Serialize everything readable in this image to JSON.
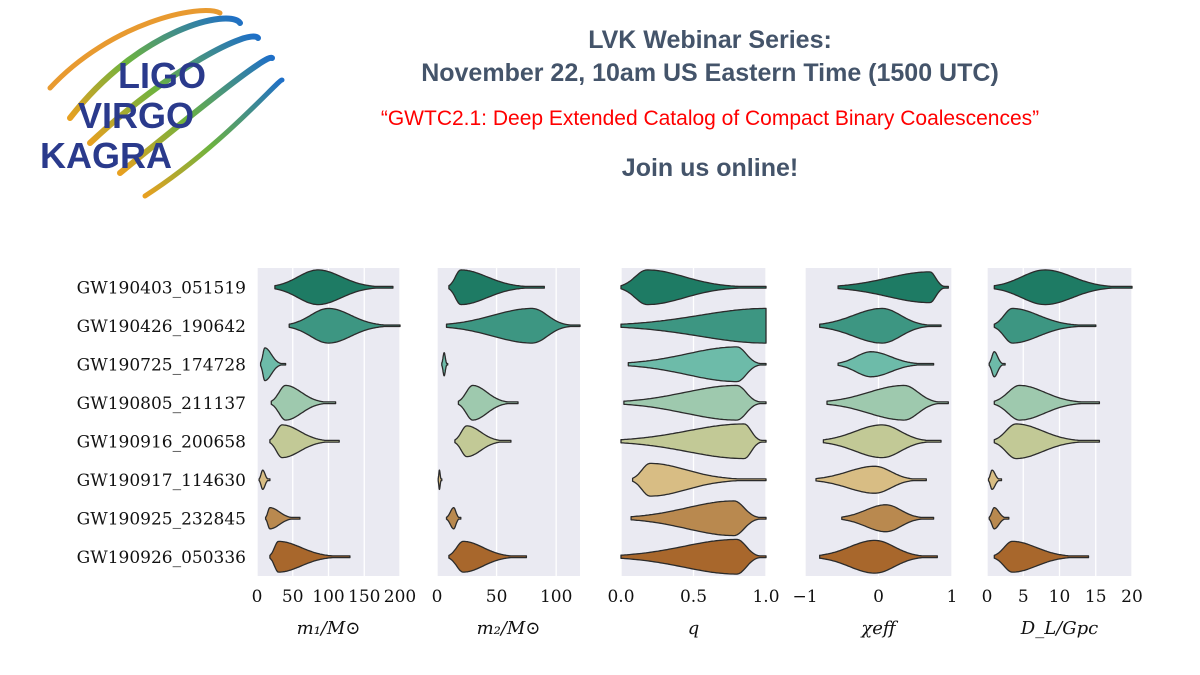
{
  "header": {
    "series": "LVK Webinar Series:",
    "datetime": "November 22, 10am US Eastern Time (1500 UTC)",
    "talk_title": "“GWTC2.1: Deep Extended Catalog of Compact Binary Coalescences”",
    "call_to_action": "Join us online!"
  },
  "logo": {
    "lines": [
      "LIGO",
      "VIRGO",
      "KAGRA"
    ]
  },
  "colors": {
    "panel_bg": "#eaeaf2",
    "grid": "#ffffff",
    "logo_text": "#2a3a8c",
    "rows": [
      "#1e7b64",
      "#3d9682",
      "#6dbba9",
      "#9ec9ae",
      "#c2c996",
      "#d8bd84",
      "#b9894f",
      "#a8672c"
    ]
  },
  "chart_data": {
    "type": "violin",
    "events": [
      "GW190403_051519",
      "GW190426_190642",
      "GW190725_174728",
      "GW190805_211137",
      "GW190916_200658",
      "GW190917_114630",
      "GW190925_232845",
      "GW190926_050336"
    ],
    "panels": [
      {
        "xlabel": "m₁/M⊙",
        "xlim": [
          0,
          200
        ],
        "xticks": [
          0,
          50,
          100,
          150,
          200
        ],
        "xticklabels": [
          "0",
          "50",
          "100",
          "150",
          "200"
        ],
        "violins": [
          {
            "min": 25,
            "peak": 85,
            "max": 190,
            "width": 0.9
          },
          {
            "min": 45,
            "peak": 100,
            "max": 200,
            "width": 0.9
          },
          {
            "min": 5,
            "peak": 11,
            "max": 40,
            "width": 0.85
          },
          {
            "min": 20,
            "peak": 40,
            "max": 110,
            "width": 0.9
          },
          {
            "min": 18,
            "peak": 35,
            "max": 115,
            "width": 0.85
          },
          {
            "min": 3,
            "peak": 8,
            "max": 18,
            "width": 0.5
          },
          {
            "min": 12,
            "peak": 18,
            "max": 60,
            "width": 0.55
          },
          {
            "min": 18,
            "peak": 30,
            "max": 130,
            "width": 0.8
          }
        ]
      },
      {
        "xlabel": "m₂/M⊙",
        "xlim": [
          0,
          120
        ],
        "xticks": [
          0,
          50,
          100
        ],
        "xticklabels": [
          "0",
          "50",
          "100"
        ],
        "violins": [
          {
            "min": 10,
            "peak": 20,
            "max": 90,
            "width": 0.9
          },
          {
            "min": 8,
            "peak": 80,
            "max": 120,
            "width": 0.9
          },
          {
            "min": 4,
            "peak": 6,
            "max": 9,
            "width": 0.6
          },
          {
            "min": 18,
            "peak": 30,
            "max": 68,
            "width": 0.9
          },
          {
            "min": 15,
            "peak": 25,
            "max": 62,
            "width": 0.8
          },
          {
            "min": 1,
            "peak": 2,
            "max": 4,
            "width": 0.5
          },
          {
            "min": 8,
            "peak": 14,
            "max": 20,
            "width": 0.55
          },
          {
            "min": 10,
            "peak": 22,
            "max": 75,
            "width": 0.8
          }
        ]
      },
      {
        "xlabel": "q",
        "xlim": [
          0,
          1
        ],
        "xticks": [
          0,
          0.5,
          1
        ],
        "xticklabels": [
          "0.0",
          "0.5",
          "1.0"
        ],
        "violins": [
          {
            "min": 0.0,
            "peak": 0.18,
            "max": 1.0,
            "width": 0.9
          },
          {
            "min": 0.0,
            "peak": 1.0,
            "max": 1.0,
            "width": 0.9
          },
          {
            "min": 0.05,
            "peak": 0.8,
            "max": 1.0,
            "width": 0.9
          },
          {
            "min": 0.02,
            "peak": 0.8,
            "max": 1.0,
            "width": 0.9
          },
          {
            "min": 0.0,
            "peak": 0.85,
            "max": 1.0,
            "width": 0.9
          },
          {
            "min": 0.08,
            "peak": 0.2,
            "max": 1.0,
            "width": 0.85
          },
          {
            "min": 0.07,
            "peak": 0.78,
            "max": 1.0,
            "width": 0.9
          },
          {
            "min": 0.0,
            "peak": 0.8,
            "max": 1.0,
            "width": 0.9
          }
        ]
      },
      {
        "xlabel": "χeff",
        "xlim": [
          -1,
          1
        ],
        "xticks": [
          -1,
          0,
          1
        ],
        "xticklabels": [
          "−1",
          "0",
          "1"
        ],
        "violins": [
          {
            "min": -0.55,
            "peak": 0.7,
            "max": 0.95,
            "width": 0.8
          },
          {
            "min": -0.8,
            "peak": 0.05,
            "max": 0.85,
            "width": 0.9
          },
          {
            "min": -0.55,
            "peak": -0.1,
            "max": 0.75,
            "width": 0.65
          },
          {
            "min": -0.7,
            "peak": 0.35,
            "max": 0.95,
            "width": 0.9
          },
          {
            "min": -0.75,
            "peak": 0.05,
            "max": 0.85,
            "width": 0.85
          },
          {
            "min": -0.85,
            "peak": -0.05,
            "max": 0.65,
            "width": 0.7
          },
          {
            "min": -0.5,
            "peak": 0.1,
            "max": 0.75,
            "width": 0.7
          },
          {
            "min": -0.8,
            "peak": -0.05,
            "max": 0.8,
            "width": 0.85
          }
        ]
      },
      {
        "xlabel": "D_L/Gpc",
        "xlim": [
          0,
          20
        ],
        "xticks": [
          0,
          5,
          10,
          15,
          20
        ],
        "xticklabels": [
          "0",
          "5",
          "10",
          "15",
          "20"
        ],
        "violins": [
          {
            "min": 1,
            "peak": 8,
            "max": 20,
            "width": 0.9
          },
          {
            "min": 1,
            "peak": 3.5,
            "max": 15,
            "width": 0.9
          },
          {
            "min": 0.3,
            "peak": 1,
            "max": 2.5,
            "width": 0.65
          },
          {
            "min": 1,
            "peak": 4.5,
            "max": 15.5,
            "width": 0.9
          },
          {
            "min": 1,
            "peak": 4,
            "max": 15.5,
            "width": 0.9
          },
          {
            "min": 0.2,
            "peak": 0.7,
            "max": 2,
            "width": 0.5
          },
          {
            "min": 0.3,
            "peak": 1,
            "max": 3,
            "width": 0.55
          },
          {
            "min": 1,
            "peak": 3.5,
            "max": 14,
            "width": 0.8
          }
        ]
      }
    ]
  }
}
